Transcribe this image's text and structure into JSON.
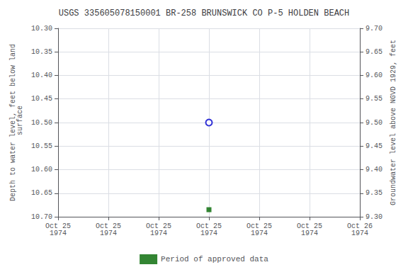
{
  "chart_data": {
    "type": "scatter",
    "title": "USGS 335605078150001 BR-258 BRUNSWICK CO P-5 HOLDEN BEACH",
    "ylabel": "Depth to water level, feet below land\n surface",
    "y2label": "Groundwater level above NGVD 1929, feet",
    "categories": [
      "Oct 25\n1974",
      "Oct 25\n1974",
      "Oct 25\n1974",
      "Oct 25\n1974",
      "Oct 25\n1974",
      "Oct 25\n1974",
      "Oct 26\n1974"
    ],
    "series": [
      {
        "color": "#0000cc",
        "marker": "circle",
        "values": [
          null,
          null,
          null,
          10.5,
          null,
          null,
          null
        ]
      },
      {
        "name": "Period of approved data",
        "color": "#006600",
        "marker": "square",
        "values": [
          null,
          null,
          null,
          10.685,
          null,
          null,
          null
        ]
      }
    ],
    "ylim": [
      10.7,
      10.3
    ],
    "yticks": [
      {
        "value": 10.3,
        "label": "10.30"
      },
      10.35,
      {
        "value": 10.4,
        "label": "10.40"
      },
      10.45,
      {
        "value": 10.5,
        "label": "10.50"
      },
      10.55,
      {
        "value": 10.6,
        "label": "10.60"
      },
      10.65,
      {
        "value": 10.7,
        "label": "10.70"
      }
    ],
    "y2lim": [
      9.3,
      9.7
    ],
    "y2ticks": [
      {
        "value": 9.7,
        "label": "9.70"
      },
      9.65,
      {
        "value": 9.6,
        "label": "9.60"
      },
      9.55,
      {
        "value": 9.5,
        "label": "9.50"
      },
      9.45,
      {
        "value": 9.4,
        "label": "9.40"
      },
      9.35,
      {
        "value": 9.3,
        "label": "9.30"
      }
    ],
    "grid": true,
    "legend": "bottom"
  }
}
